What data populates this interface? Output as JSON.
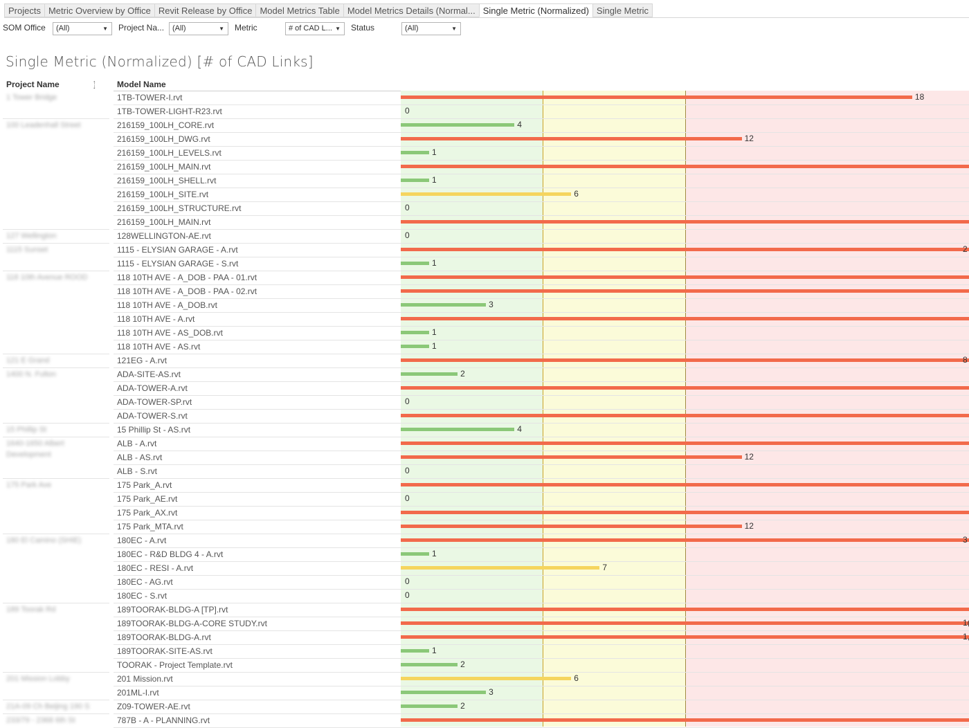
{
  "tabs": [
    {
      "label": "Projects",
      "active": false
    },
    {
      "label": "Metric Overview by Office",
      "active": false
    },
    {
      "label": "Revit Release by Office",
      "active": false
    },
    {
      "label": "Model Metrics Table",
      "active": false
    },
    {
      "label": "Model Metrics Details (Normal...",
      "active": false
    },
    {
      "label": "Single Metric (Normalized)",
      "active": true
    },
    {
      "label": "Single Metric",
      "active": false
    }
  ],
  "filters": [
    {
      "label": "SOM Office",
      "value": "(All)"
    },
    {
      "label": "Project Na...",
      "value": "(All)"
    },
    {
      "label": "Metric",
      "value": "# of CAD L..."
    },
    {
      "label": "Status",
      "value": "(All)"
    }
  ],
  "page_title": "Single Metric (Normalized) [# of CAD Links]",
  "columns": {
    "project": "Project Name",
    "model": "Model Name"
  },
  "colors": {
    "good_bar": "#8bc878",
    "warn_bar": "#f5d55e",
    "bad_bar": "#f26a4b",
    "good_band": "#eaf8e4",
    "warn_band": "#fbfbd9",
    "bad_band": "#fde7e7",
    "threshold_line": "#c9a227"
  },
  "chart_data": {
    "type": "bar",
    "orientation": "horizontal",
    "title": "Single Metric (Normalized) [# of CAD Links]",
    "xlim": [
      0,
      20
    ],
    "thresholds": [
      5,
      10
    ],
    "projects": [
      {
        "name": "1 Tower Bridge",
        "rows": 2
      },
      {
        "name": "100 Leadenhall Street",
        "rows": 8
      },
      {
        "name": "127 Wellington",
        "rows": 1
      },
      {
        "name": "1115 Sunset",
        "rows": 2
      },
      {
        "name": "118 10th Avenue ROOD",
        "rows": 6
      },
      {
        "name": "121 E Grand",
        "rows": 1
      },
      {
        "name": "1400 N. Fulton",
        "rows": 4
      },
      {
        "name": "15 Phillip St",
        "rows": 1
      },
      {
        "name": "1640-1650 Albert Development",
        "rows": 3
      },
      {
        "name": "175 Park Ave",
        "rows": 4
      },
      {
        "name": "180 El Camino (SHIE)",
        "rows": 5
      },
      {
        "name": "189 Toorak Rd",
        "rows": 5
      },
      {
        "name": "201 Mission Lobby",
        "rows": 2
      },
      {
        "name": "21A-09 Ch Beijing 190 S",
        "rows": 1
      },
      {
        "name": "233/79 - 2368 6th St",
        "rows": 1
      }
    ],
    "rows": [
      {
        "model": "1TB-TOWER-I.rvt",
        "value": 18,
        "label": "18"
      },
      {
        "model": "1TB-TOWER-LIGHT-R23.rvt",
        "value": 0,
        "label": "0"
      },
      {
        "model": "216159_100LH_CORE.rvt",
        "value": 4,
        "label": "4"
      },
      {
        "model": "216159_100LH_DWG.rvt",
        "value": 12,
        "label": "12"
      },
      {
        "model": "216159_100LH_LEVELS.rvt",
        "value": 1,
        "label": "1"
      },
      {
        "model": "216159_100LH_MAIN.rvt",
        "value": 20,
        "label": ""
      },
      {
        "model": "216159_100LH_SHELL.rvt",
        "value": 1,
        "label": "1"
      },
      {
        "model": "216159_100LH_SITE.rvt",
        "value": 6,
        "label": "6"
      },
      {
        "model": "216159_100LH_STRUCTURE.rvt",
        "value": 0,
        "label": "0"
      },
      {
        "model": "216159_100LH_MAIN.rvt",
        "value": 20,
        "label": ""
      },
      {
        "model": "128WELLINGTON-AE.rvt",
        "value": 0,
        "label": "0"
      },
      {
        "model": "1115 - ELYSIAN GARAGE - A.rvt",
        "value": 20,
        "label": "2"
      },
      {
        "model": "1115 - ELYSIAN GARAGE - S.rvt",
        "value": 1,
        "label": "1"
      },
      {
        "model": "118 10TH AVE - A_DOB - PAA - 01.rvt",
        "value": 20,
        "label": ""
      },
      {
        "model": "118 10TH AVE - A_DOB - PAA - 02.rvt",
        "value": 20,
        "label": ""
      },
      {
        "model": "118 10TH AVE - A_DOB.rvt",
        "value": 3,
        "label": "3"
      },
      {
        "model": "118 10TH AVE - A.rvt",
        "value": 20,
        "label": ""
      },
      {
        "model": "118 10TH AVE - AS_DOB.rvt",
        "value": 1,
        "label": "1"
      },
      {
        "model": "118 10TH AVE - AS.rvt",
        "value": 1,
        "label": "1"
      },
      {
        "model": "121EG - A.rvt",
        "value": 20,
        "label": "8"
      },
      {
        "model": "ADA-SITE-AS.rvt",
        "value": 2,
        "label": "2"
      },
      {
        "model": "ADA-TOWER-A.rvt",
        "value": 20,
        "label": ""
      },
      {
        "model": "ADA-TOWER-SP.rvt",
        "value": 0,
        "label": "0"
      },
      {
        "model": "ADA-TOWER-S.rvt",
        "value": 20,
        "label": ""
      },
      {
        "model": "15 Phillip St - AS.rvt",
        "value": 4,
        "label": "4"
      },
      {
        "model": "ALB - A.rvt",
        "value": 20,
        "label": ""
      },
      {
        "model": "ALB - AS.rvt",
        "value": 12,
        "label": "12"
      },
      {
        "model": "ALB - S.rvt",
        "value": 0,
        "label": "0"
      },
      {
        "model": "175 Park_A.rvt",
        "value": 20,
        "label": ""
      },
      {
        "model": "175 Park_AE.rvt",
        "value": 0,
        "label": "0"
      },
      {
        "model": "175 Park_AX.rvt",
        "value": 20,
        "label": ""
      },
      {
        "model": "175 Park_MTA.rvt",
        "value": 12,
        "label": "12"
      },
      {
        "model": "180EC - A.rvt",
        "value": 20,
        "label": "3"
      },
      {
        "model": "180EC - R&D BLDG 4 - A.rvt",
        "value": 1,
        "label": "1"
      },
      {
        "model": "180EC - RESI - A.rvt",
        "value": 7,
        "label": "7"
      },
      {
        "model": "180EC - AG.rvt",
        "value": 0,
        "label": "0"
      },
      {
        "model": "180EC - S.rvt",
        "value": 0,
        "label": "0"
      },
      {
        "model": "189TOORAK-BLDG-A [TP].rvt",
        "value": 20,
        "label": ""
      },
      {
        "model": "189TOORAK-BLDG-A-CORE STUDY.rvt",
        "value": 20,
        "label": "1("
      },
      {
        "model": "189TOORAK-BLDG-A.rvt",
        "value": 20,
        "label": "1,3"
      },
      {
        "model": "189TOORAK-SITE-AS.rvt",
        "value": 1,
        "label": "1"
      },
      {
        "model": "TOORAK - Project Template.rvt",
        "value": 2,
        "label": "2"
      },
      {
        "model": "201 Mission.rvt",
        "value": 6,
        "label": "6"
      },
      {
        "model": "201ML-I.rvt",
        "value": 3,
        "label": "3"
      },
      {
        "model": "Z09-TOWER-AE.rvt",
        "value": 2,
        "label": "2"
      },
      {
        "model": "787B - A - PLANNING.rvt",
        "value": 20,
        "label": ""
      }
    ]
  }
}
